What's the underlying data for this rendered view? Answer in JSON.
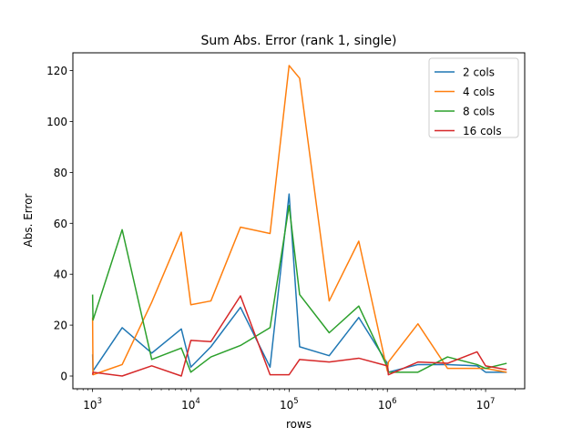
{
  "chart_data": {
    "type": "line",
    "title": "Sum Abs. Error (rank 1, single)",
    "xlabel": "rows",
    "ylabel": "Abs. Error",
    "xscale": "log",
    "xlim": [
      630,
      25000000
    ],
    "ylim": [
      -5,
      127
    ],
    "yticks": [
      0,
      20,
      40,
      60,
      80,
      100,
      120
    ],
    "xticks": [
      {
        "value": 1000,
        "base": "10",
        "exp": "3"
      },
      {
        "value": 10000,
        "base": "10",
        "exp": "4"
      },
      {
        "value": 100000,
        "base": "10",
        "exp": "5"
      },
      {
        "value": 1000000,
        "base": "10",
        "exp": "6"
      },
      {
        "value": 10000000,
        "base": "10",
        "exp": "7"
      }
    ],
    "grid": false,
    "legend_position": "top-right",
    "x": [
      1000,
      1010,
      2000,
      4000,
      8000,
      10000,
      16000,
      32000,
      64000,
      100000,
      128000,
      256000,
      512000,
      1000000,
      1024000,
      2048000,
      4096000,
      8192000,
      10000000,
      16384000
    ],
    "series": [
      {
        "name": "2 cols",
        "color": "#1f77b4",
        "values": [
          8.5,
          2.0,
          19.0,
          9.0,
          18.5,
          3.5,
          11.5,
          27.0,
          3.5,
          71.5,
          11.5,
          8.0,
          23.0,
          5.0,
          1.5,
          4.5,
          4.5,
          4.0,
          1.5,
          1.5
        ]
      },
      {
        "name": "4 cols",
        "color": "#ff7f0e",
        "values": [
          23.0,
          0.5,
          4.5,
          29.0,
          56.5,
          28.0,
          29.5,
          58.5,
          56.0,
          122.0,
          117.0,
          29.5,
          53.0,
          2.0,
          5.5,
          20.5,
          3.0,
          3.0,
          3.0,
          1.5
        ]
      },
      {
        "name": "8 cols",
        "color": "#2ca02c",
        "values": [
          32.0,
          22.0,
          57.5,
          6.5,
          11.0,
          1.5,
          7.5,
          12.0,
          19.0,
          67.0,
          32.0,
          17.0,
          27.5,
          3.5,
          1.5,
          1.5,
          7.5,
          4.5,
          3.0,
          5.0
        ]
      },
      {
        "name": "16 cols",
        "color": "#d62728",
        "values": [
          0.5,
          1.5,
          0.0,
          4.0,
          0.0,
          14.0,
          13.5,
          31.5,
          0.5,
          0.5,
          6.5,
          5.5,
          7.0,
          4.0,
          0.5,
          5.5,
          5.0,
          9.5,
          4.0,
          2.5
        ]
      }
    ]
  }
}
